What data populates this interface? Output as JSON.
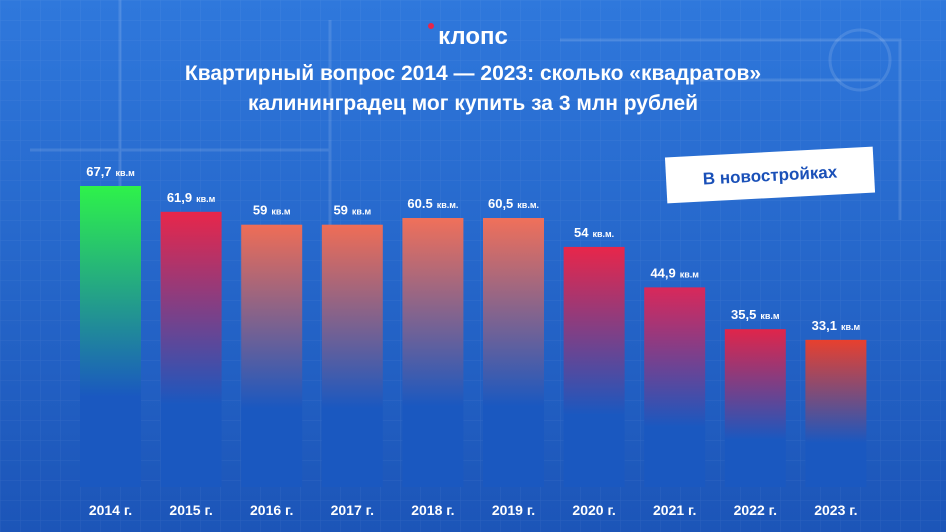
{
  "brand": "клопс",
  "chart_data": {
    "type": "bar",
    "title": [
      "Квартирный вопрос 2014 — 2023: сколько «квадратов»",
      "калининградец мог купить за 3 млн рублей"
    ],
    "badge": "В новостройках",
    "categories": [
      "2014 г.",
      "2015 г.",
      "2016 г.",
      "2017 г.",
      "2018 г.",
      "2019 г.",
      "2020 г.",
      "2021 г.",
      "2022 г.",
      "2023 г."
    ],
    "values": [
      67.7,
      61.9,
      59,
      59,
      60.5,
      60.5,
      54,
      44.9,
      35.5,
      33.1
    ],
    "value_labels": [
      "67,7",
      "61,9",
      "59",
      "59",
      "60.5",
      "60,5",
      "54",
      "44,9",
      "35,5",
      "33,1"
    ],
    "units": [
      "кв.м",
      "кв.м",
      "кв.м",
      "кв.м",
      "кв.м.",
      "кв.м.",
      "кв.м.",
      "кв.м",
      "кв.м",
      "кв.м"
    ],
    "colors": [
      "#2ef24a",
      "#e8264a",
      "#ef6d56",
      "#ef6d56",
      "#f0705a",
      "#f0705a",
      "#e8264a",
      "#d9285a",
      "#e0254a",
      "#e8402e"
    ],
    "base_color": "#1a58c0"
  }
}
